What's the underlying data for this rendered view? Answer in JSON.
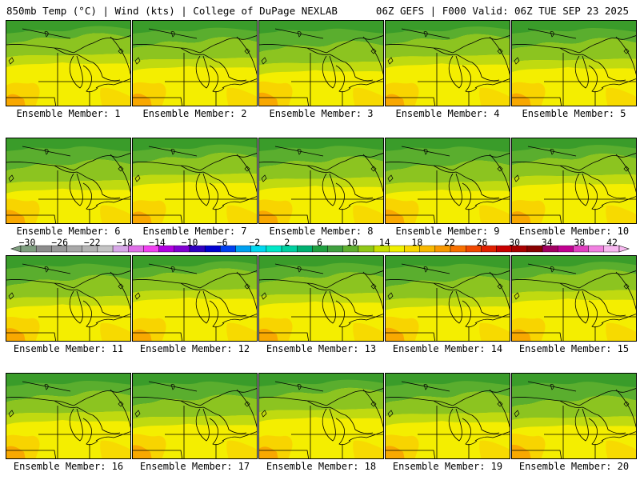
{
  "header": {
    "left": "850mb Temp (°C) | Wind (kts) | College of DuPage NEXLAB",
    "right": "06Z GEFS | F000 Valid: 06Z TUE SEP 23 2025"
  },
  "members": [
    {
      "label": "Ensemble Member: 1"
    },
    {
      "label": "Ensemble Member: 2"
    },
    {
      "label": "Ensemble Member: 3"
    },
    {
      "label": "Ensemble Member: 4"
    },
    {
      "label": "Ensemble Member: 5"
    },
    {
      "label": "Ensemble Member: 6"
    },
    {
      "label": "Ensemble Member: 7"
    },
    {
      "label": "Ensemble Member: 8"
    },
    {
      "label": "Ensemble Member: 9"
    },
    {
      "label": "Ensemble Member: 10"
    },
    {
      "label": "Ensemble Member: 11"
    },
    {
      "label": "Ensemble Member: 12"
    },
    {
      "label": "Ensemble Member: 13"
    },
    {
      "label": "Ensemble Member: 14"
    },
    {
      "label": "Ensemble Member: 15"
    },
    {
      "label": "Ensemble Member: 16"
    },
    {
      "label": "Ensemble Member: 17"
    },
    {
      "label": "Ensemble Member: 18"
    },
    {
      "label": "Ensemble Member: 19"
    },
    {
      "label": "Ensemble Member: 20"
    }
  ],
  "colorbar": {
    "ticks": [
      "−30",
      "−26",
      "−22",
      "−18",
      "−14",
      "−10",
      "−6",
      "−2",
      "2",
      "6",
      "10",
      "14",
      "18",
      "22",
      "26",
      "30",
      "34",
      "38",
      "42"
    ],
    "colors": [
      "#7f9f7f",
      "#8c8c8c",
      "#9a9a9a",
      "#a8a8a8",
      "#b4b4b4",
      "#c4c4c4",
      "#d8a8e8",
      "#e070e8",
      "#f040f0",
      "#b000e0",
      "#8000d0",
      "#3000c0",
      "#0000d0",
      "#0040f0",
      "#00a0f0",
      "#00d8f0",
      "#00e8c8",
      "#00d0a0",
      "#00b070",
      "#20a040",
      "#40a040",
      "#60b030",
      "#90c818",
      "#c8e000",
      "#f0f000",
      "#f8d800",
      "#f8b800",
      "#f89800",
      "#f87000",
      "#f04800",
      "#e02000",
      "#c80000",
      "#a80000",
      "#880000",
      "#a00060",
      "#c00090",
      "#e040c0",
      "#f080e0",
      "#f8b8f0"
    ]
  },
  "map_colors": {
    "green_dark": "#3a9c2a",
    "green": "#5aae2e",
    "green_light": "#8cc420",
    "yellow_green": "#c0da10",
    "yellow": "#f4ee00",
    "orange_yellow": "#f8d400",
    "orange": "#f8a800"
  }
}
